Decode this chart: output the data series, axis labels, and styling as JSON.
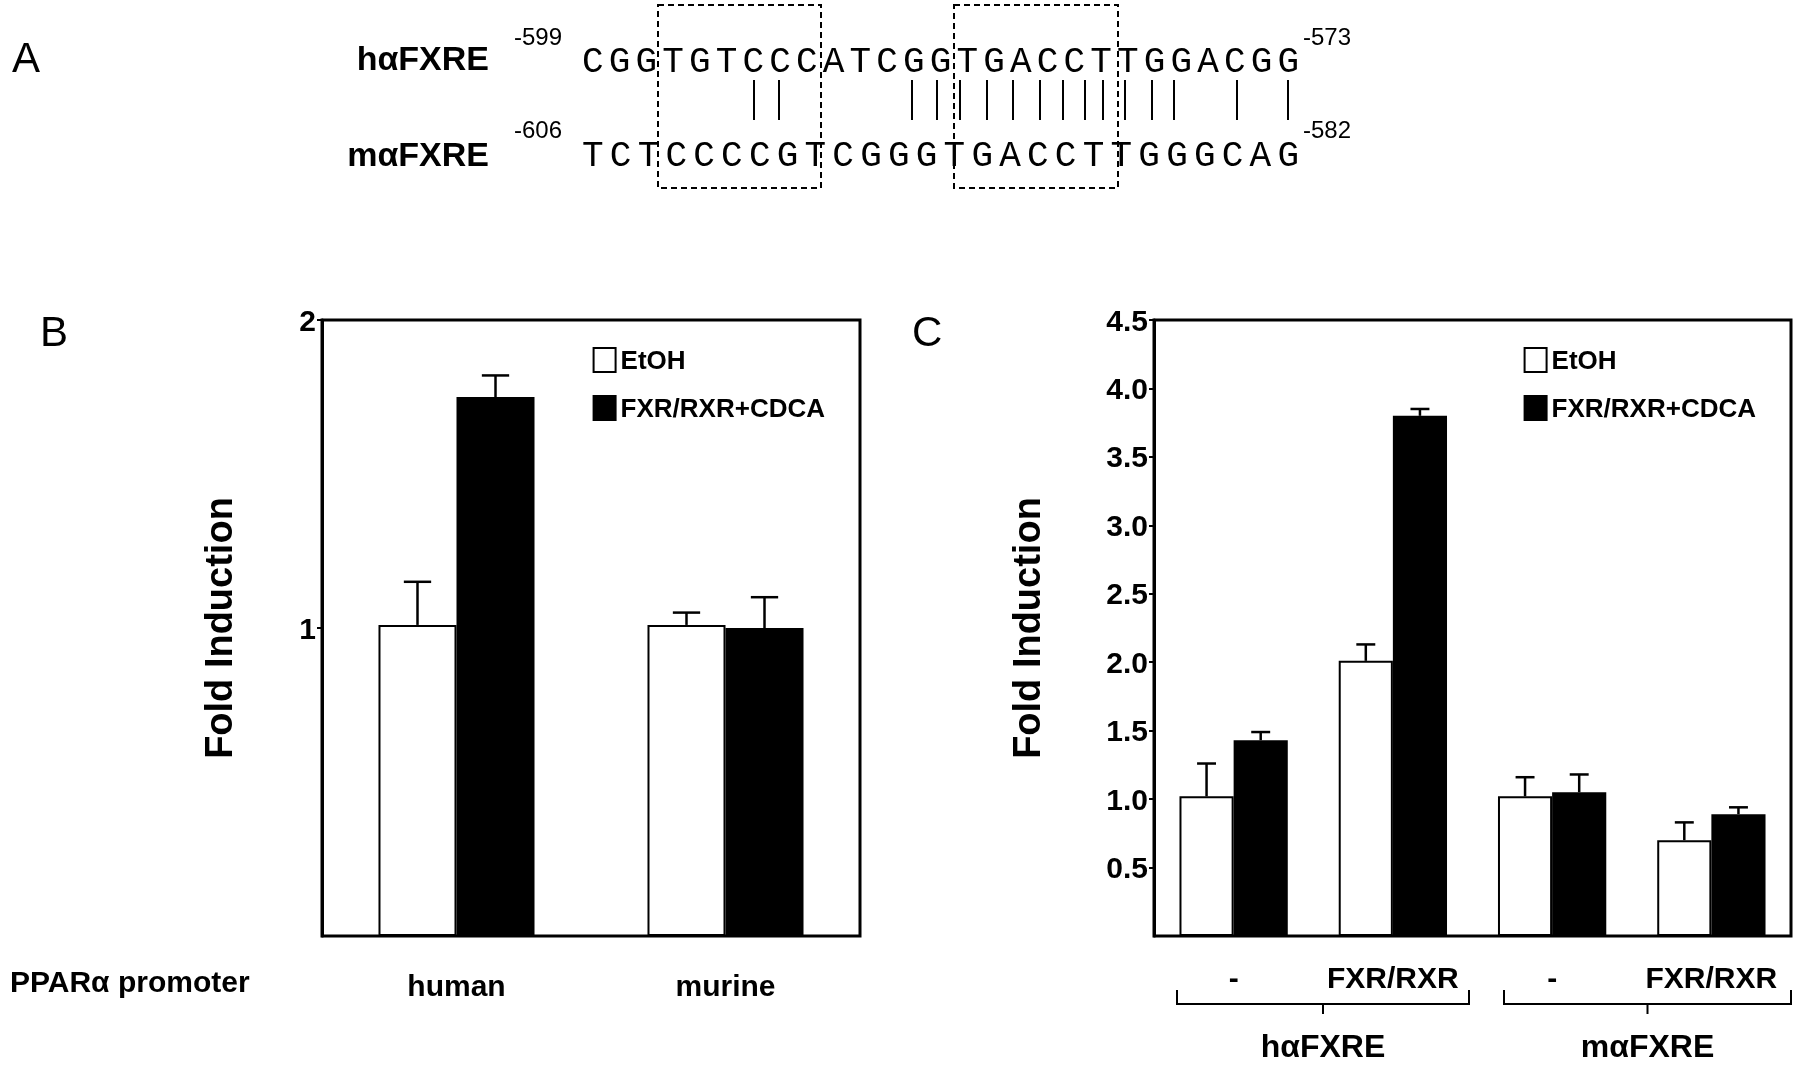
{
  "chart_data": [
    {
      "type": "other",
      "title": "A",
      "annotations": [
        "hαFXRE",
        "-599",
        "CGGTGTCCCATCGGTGACCTTGGACGG",
        "-573",
        "mαFXRE",
        "-606",
        "TCTCCCCGTCGGGTGACCTTGGGCAG",
        "-582"
      ]
    },
    {
      "type": "bar",
      "title": "B",
      "ylabel": "Fold Induction",
      "xlabel": "PPARα promoter",
      "categories": [
        "human",
        "murine"
      ],
      "ylim": [
        0,
        2
      ],
      "yticks": [
        1,
        2
      ],
      "grid": false,
      "legend": "top right",
      "series": [
        {
          "name": "EtOH",
          "color": "#ffffff",
          "values": [
            1.01,
            1.01
          ],
          "errors": [
            [
              1.01,
              1.15
            ],
            [
              1.01,
              1.05
            ]
          ]
        },
        {
          "name": "FXR/RXR+CDCA",
          "color": "#000000",
          "values": [
            1.75,
            1.0
          ],
          "errors": [
            [
              1.75,
              1.82
            ],
            [
              1.0,
              1.1
            ]
          ]
        }
      ]
    },
    {
      "type": "bar",
      "title": "C",
      "ylabel": "Fold Induction",
      "categories": [
        "-",
        "FXR/RXR",
        "-",
        "FXR/RXR"
      ],
      "ylim": [
        0,
        4.5
      ],
      "yticks": [
        {
          "value": 0.5,
          "label": "0.5"
        },
        {
          "value": 1,
          "label": "1.0"
        },
        {
          "value": 1.5,
          "label": "1.5"
        },
        {
          "value": 2,
          "label": "2.0"
        },
        {
          "value": 2.5,
          "label": "2.5"
        },
        {
          "value": 3,
          "label": "3.0"
        },
        {
          "value": 3.5,
          "label": "3.5"
        },
        {
          "value": 4,
          "label": "4.0"
        },
        {
          "value": 4.5,
          "label": "4.5"
        }
      ],
      "grid": false,
      "legend": "top right",
      "annotations": [
        "hαFXRE",
        "mαFXRE"
      ],
      "series": [
        {
          "name": "EtOH",
          "color": "#ffffff",
          "values": [
            1.02,
            2.01,
            1.02,
            0.7
          ],
          "errors": [
            [
              1.02,
              1.26
            ],
            [
              2.01,
              2.13
            ],
            [
              1.02,
              1.16
            ],
            [
              0.7,
              0.83
            ]
          ]
        },
        {
          "name": "FXR/RXR+CDCA",
          "color": "#000000",
          "values": [
            1.43,
            3.8,
            1.05,
            0.89
          ],
          "errors": [
            [
              1.43,
              1.49
            ],
            [
              3.8,
              3.85
            ],
            [
              1.05,
              1.18
            ],
            [
              0.89,
              0.94
            ]
          ]
        }
      ]
    }
  ]
}
